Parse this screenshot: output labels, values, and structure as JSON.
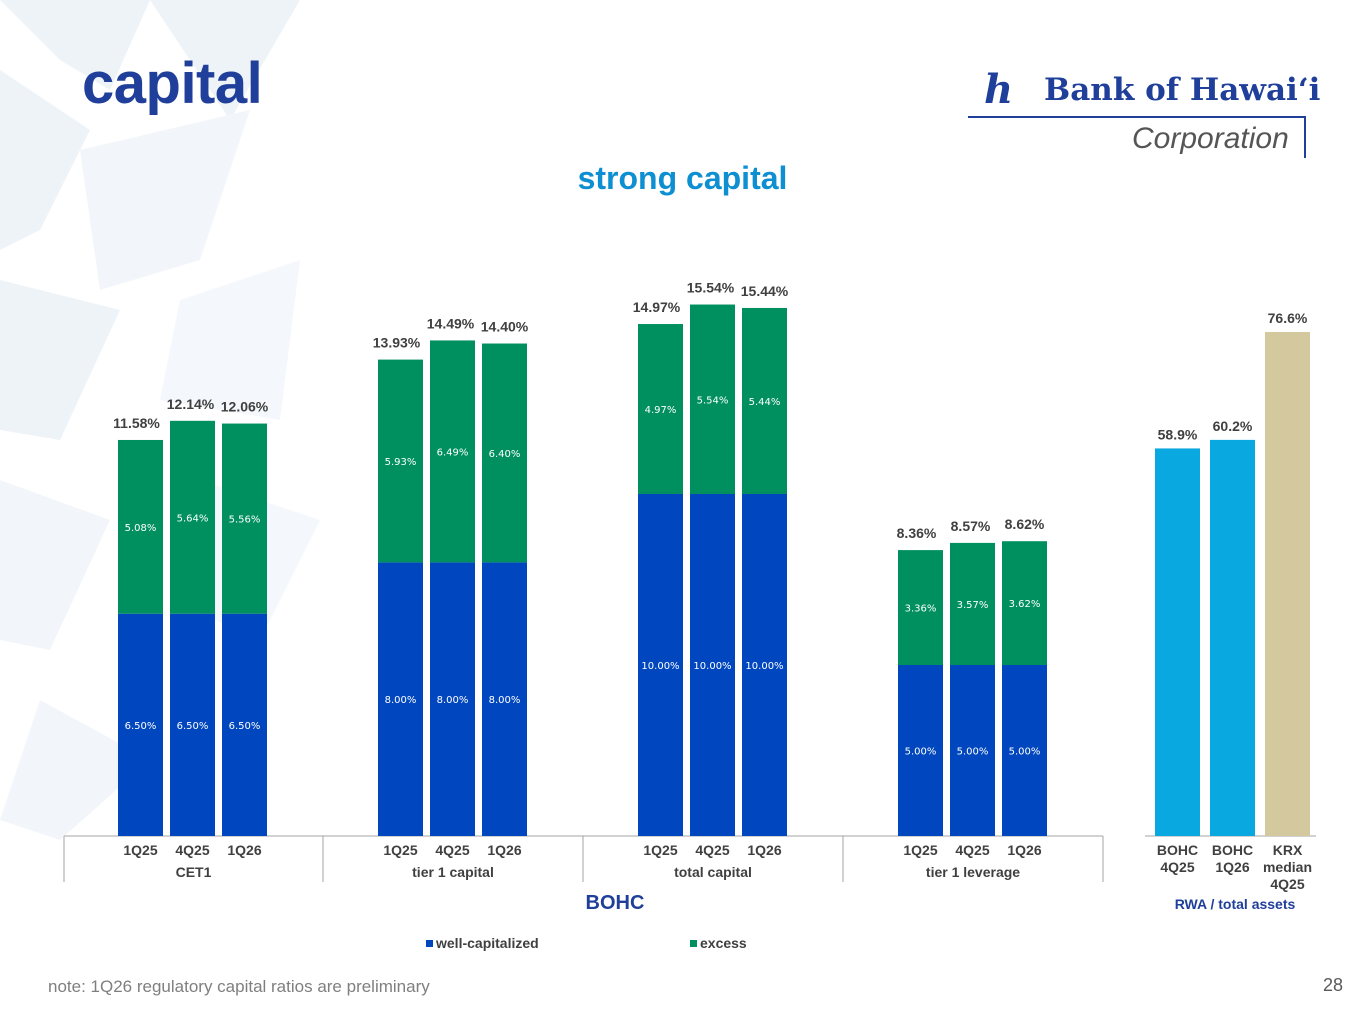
{
  "title": "capital",
  "subtitle": "strong capital",
  "logo": {
    "mark": "h",
    "name": "Bank of Hawaiʻi",
    "corporation": "Corporation"
  },
  "footnote": "note: 1Q26 regulatory capital ratios are preliminary",
  "page_number": "28",
  "bohc_label": "BOHC",
  "rwa_label": "RWA / total assets",
  "legend": {
    "well_capitalized": "well-capitalized",
    "excess": "excess"
  },
  "colors": {
    "well_capitalized": "#0046be",
    "excess": "#009060",
    "bohc_bar": "#0aa8e0",
    "krx_bar": "#d4c99e",
    "title": "#1f3f9a",
    "subtitle": "#0d8fd2"
  },
  "chart_data": [
    {
      "type": "bar",
      "stacked": true,
      "title": "BOHC",
      "legend": [
        "well-capitalized",
        "excess"
      ],
      "ylim": [
        0,
        16
      ],
      "groups": [
        {
          "name": "CET1",
          "categories": [
            "1Q25",
            "4Q25",
            "1Q26"
          ],
          "series": [
            {
              "name": "well-capitalized",
              "values": [
                6.5,
                6.5,
                6.5
              ],
              "labels": [
                "6.50%",
                "6.50%",
                "6.50%"
              ]
            },
            {
              "name": "excess",
              "values": [
                5.08,
                5.64,
                5.56
              ],
              "labels": [
                "5.08%",
                "5.64%",
                "5.56%"
              ]
            }
          ],
          "totals": [
            "11.58%",
            "12.14%",
            "12.06%"
          ]
        },
        {
          "name": "tier 1 capital",
          "categories": [
            "1Q25",
            "4Q25",
            "1Q26"
          ],
          "series": [
            {
              "name": "well-capitalized",
              "values": [
                8.0,
                8.0,
                8.0
              ],
              "labels": [
                "8.00%",
                "8.00%",
                "8.00%"
              ]
            },
            {
              "name": "excess",
              "values": [
                5.93,
                6.49,
                6.4
              ],
              "labels": [
                "5.93%",
                "6.49%",
                "6.40%"
              ]
            }
          ],
          "totals": [
            "13.93%",
            "14.49%",
            "14.40%"
          ]
        },
        {
          "name": "total capital",
          "categories": [
            "1Q25",
            "4Q25",
            "1Q26"
          ],
          "series": [
            {
              "name": "well-capitalized",
              "values": [
                10.0,
                10.0,
                10.0
              ],
              "labels": [
                "10.00%",
                "10.00%",
                "10.00%"
              ]
            },
            {
              "name": "excess",
              "values": [
                4.97,
                5.54,
                5.44
              ],
              "labels": [
                "4.97%",
                "5.54%",
                "5.44%"
              ]
            }
          ],
          "totals": [
            "14.97%",
            "15.54%",
            "15.44%"
          ]
        },
        {
          "name": "tier 1 leverage",
          "categories": [
            "1Q25",
            "4Q25",
            "1Q26"
          ],
          "series": [
            {
              "name": "well-capitalized",
              "values": [
                5.0,
                5.0,
                5.0
              ],
              "labels": [
                "5.00%",
                "5.00%",
                "5.00%"
              ]
            },
            {
              "name": "excess",
              "values": [
                3.36,
                3.57,
                3.62
              ],
              "labels": [
                "3.36%",
                "3.57%",
                "3.62%"
              ]
            }
          ],
          "totals": [
            "8.36%",
            "8.57%",
            "8.62%"
          ]
        }
      ]
    },
    {
      "type": "bar",
      "title": "RWA / total assets",
      "ylim": [
        0,
        100
      ],
      "categories": [
        [
          "BOHC",
          "4Q25"
        ],
        [
          "BOHC",
          "1Q26"
        ],
        [
          "KRX",
          "median",
          "4Q25"
        ]
      ],
      "values": [
        58.9,
        60.2,
        76.6
      ],
      "labels": [
        "58.9%",
        "60.2%",
        "76.6%"
      ]
    }
  ]
}
